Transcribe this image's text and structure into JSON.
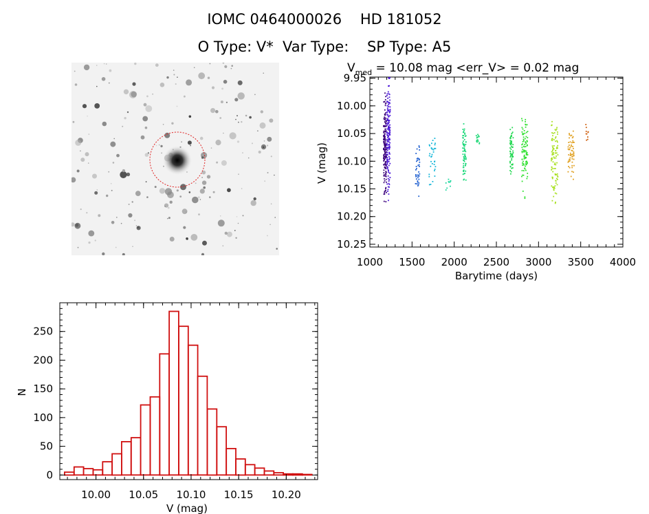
{
  "header": {
    "title_line1": "IOMC 0464000026    HD 181052",
    "title_line2": "O Type: V*  Var Type:    SP Type: A5"
  },
  "colors": {
    "histogram": "#d01010",
    "aperture_circle": "#e02020"
  },
  "chart_data": [
    {
      "type": "scatter",
      "title_parts": [
        "V",
        "med",
        " = 10.08 mag <err_V> = 0.02 mag"
      ],
      "xlabel": "Barytime (days)",
      "ylabel": "V (mag)",
      "xlim": [
        1000,
        4000
      ],
      "ylim": [
        10.255,
        9.948
      ],
      "y_inverted": true,
      "xticks": [
        1000,
        1500,
        2000,
        2500,
        3000,
        3500,
        4000
      ],
      "yticks": [
        9.95,
        10.0,
        10.05,
        10.1,
        10.15,
        10.2,
        10.25
      ],
      "grid": false,
      "series": [
        {
          "color": "#3a007a",
          "x_range": [
            1160,
            1195
          ],
          "y_center": 10.08,
          "y_spread": 0.12,
          "count": 160
        },
        {
          "color": "#4b17d8",
          "x_range": [
            1200,
            1240
          ],
          "y_center": 10.05,
          "y_spread": 0.14,
          "count": 160
        },
        {
          "color": "#1f5fd0",
          "x_range": [
            1540,
            1590
          ],
          "y_center": 10.11,
          "y_spread": 0.07,
          "count": 40
        },
        {
          "color": "#10b5d8",
          "x_range": [
            1700,
            1780
          ],
          "y_center": 10.09,
          "y_spread": 0.07,
          "count": 35
        },
        {
          "color": "#20d8a0",
          "x_range": [
            1900,
            1960
          ],
          "y_center": 10.14,
          "y_spread": 0.02,
          "count": 10
        },
        {
          "color": "#18d878",
          "x_range": [
            2100,
            2140
          ],
          "y_center": 10.08,
          "y_spread": 0.08,
          "count": 70
        },
        {
          "color": "#20d878",
          "x_range": [
            2260,
            2300
          ],
          "y_center": 10.06,
          "y_spread": 0.02,
          "count": 15
        },
        {
          "color": "#20d850",
          "x_range": [
            2660,
            2700
          ],
          "y_center": 10.08,
          "y_spread": 0.06,
          "count": 60
        },
        {
          "color": "#30e030",
          "x_range": [
            2800,
            2870
          ],
          "y_center": 10.08,
          "y_spread": 0.1,
          "count": 100
        },
        {
          "color": "#a8e020",
          "x_range": [
            3150,
            3230
          ],
          "y_center": 10.1,
          "y_spread": 0.1,
          "count": 100
        },
        {
          "color": "#e0a020",
          "x_range": [
            3350,
            3420
          ],
          "y_center": 10.09,
          "y_spread": 0.07,
          "count": 60
        },
        {
          "color": "#d06010",
          "x_range": [
            3560,
            3590
          ],
          "y_center": 10.05,
          "y_spread": 0.04,
          "count": 10
        }
      ]
    },
    {
      "type": "bar",
      "xlabel": "V (mag)",
      "ylabel": "N",
      "xlim": [
        9.962,
        10.233
      ],
      "ylim": [
        -8,
        300
      ],
      "xticks": [
        "10.00",
        "10.05",
        "10.10",
        "10.15",
        "10.20"
      ],
      "yticks": [
        0,
        50,
        100,
        150,
        200,
        250
      ],
      "bin_edges_start": 9.967,
      "bin_width": 0.01,
      "values": [
        5,
        14,
        11,
        9,
        23,
        37,
        58,
        65,
        122,
        136,
        211,
        285,
        259,
        226,
        172,
        115,
        84,
        46,
        28,
        18,
        12,
        7,
        4,
        2,
        2,
        1,
        0
      ],
      "grid": false
    }
  ]
}
